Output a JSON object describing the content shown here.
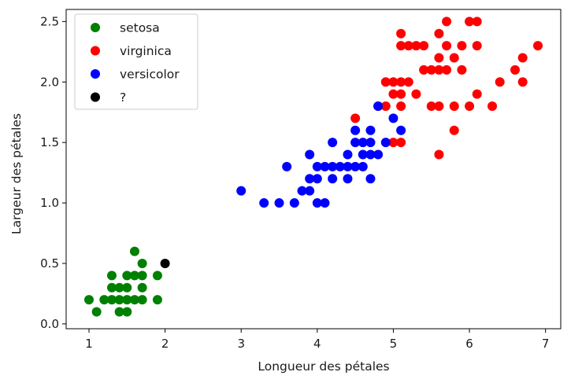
{
  "chart_data": {
    "type": "scatter",
    "title": "",
    "xlabel": "Longueur des pétales",
    "ylabel": "Largeur des pétales",
    "xlim": [
      0.7,
      7.2
    ],
    "ylim": [
      -0.04,
      2.6
    ],
    "xticks": [
      1,
      2,
      3,
      4,
      5,
      6,
      7
    ],
    "yticks": [
      0.0,
      0.5,
      1.0,
      1.5,
      2.0,
      2.5
    ],
    "xtick_labels": [
      "1",
      "2",
      "3",
      "4",
      "5",
      "6",
      "7"
    ],
    "ytick_labels": [
      "0.0",
      "0.5",
      "1.0",
      "1.5",
      "2.0",
      "2.5"
    ],
    "grid": false,
    "legend_position": "top-left",
    "series": [
      {
        "name": "setosa",
        "color": "#008000",
        "points": [
          [
            1.0,
            0.2
          ],
          [
            1.1,
            0.1
          ],
          [
            1.2,
            0.2
          ],
          [
            1.3,
            0.2
          ],
          [
            1.3,
            0.3
          ],
          [
            1.3,
            0.4
          ],
          [
            1.4,
            0.1
          ],
          [
            1.4,
            0.2
          ],
          [
            1.4,
            0.3
          ],
          [
            1.5,
            0.1
          ],
          [
            1.5,
            0.2
          ],
          [
            1.5,
            0.3
          ],
          [
            1.5,
            0.4
          ],
          [
            1.6,
            0.2
          ],
          [
            1.6,
            0.4
          ],
          [
            1.6,
            0.6
          ],
          [
            1.7,
            0.2
          ],
          [
            1.7,
            0.3
          ],
          [
            1.7,
            0.4
          ],
          [
            1.7,
            0.5
          ],
          [
            1.9,
            0.2
          ],
          [
            1.9,
            0.4
          ]
        ]
      },
      {
        "name": "virginica",
        "color": "#ff0000",
        "points": [
          [
            4.5,
            1.7
          ],
          [
            4.8,
            1.8
          ],
          [
            4.9,
            1.8
          ],
          [
            4.9,
            2.0
          ],
          [
            5.0,
            1.5
          ],
          [
            5.0,
            1.9
          ],
          [
            5.0,
            2.0
          ],
          [
            5.1,
            1.5
          ],
          [
            5.1,
            1.8
          ],
          [
            5.1,
            1.9
          ],
          [
            5.1,
            2.0
          ],
          [
            5.1,
            2.3
          ],
          [
            5.1,
            2.4
          ],
          [
            5.2,
            2.0
          ],
          [
            5.2,
            2.3
          ],
          [
            5.3,
            1.9
          ],
          [
            5.3,
            2.3
          ],
          [
            5.4,
            2.1
          ],
          [
            5.4,
            2.3
          ],
          [
            5.5,
            1.8
          ],
          [
            5.5,
            2.1
          ],
          [
            5.6,
            1.4
          ],
          [
            5.6,
            1.8
          ],
          [
            5.6,
            2.1
          ],
          [
            5.6,
            2.2
          ],
          [
            5.6,
            2.4
          ],
          [
            5.7,
            2.1
          ],
          [
            5.7,
            2.3
          ],
          [
            5.7,
            2.5
          ],
          [
            5.8,
            1.6
          ],
          [
            5.8,
            1.8
          ],
          [
            5.8,
            2.2
          ],
          [
            5.9,
            2.1
          ],
          [
            5.9,
            2.3
          ],
          [
            6.0,
            1.8
          ],
          [
            6.0,
            2.5
          ],
          [
            6.1,
            1.9
          ],
          [
            6.1,
            2.3
          ],
          [
            6.1,
            2.5
          ],
          [
            6.3,
            1.8
          ],
          [
            6.4,
            2.0
          ],
          [
            6.6,
            2.1
          ],
          [
            6.7,
            2.0
          ],
          [
            6.7,
            2.2
          ],
          [
            6.9,
            2.3
          ]
        ]
      },
      {
        "name": "versicolor",
        "color": "#0000ff",
        "points": [
          [
            3.0,
            1.1
          ],
          [
            3.3,
            1.0
          ],
          [
            3.5,
            1.0
          ],
          [
            3.6,
            1.3
          ],
          [
            3.7,
            1.0
          ],
          [
            3.8,
            1.1
          ],
          [
            3.9,
            1.1
          ],
          [
            3.9,
            1.2
          ],
          [
            3.9,
            1.4
          ],
          [
            4.0,
            1.0
          ],
          [
            4.0,
            1.2
          ],
          [
            4.0,
            1.3
          ],
          [
            4.1,
            1.0
          ],
          [
            4.1,
            1.3
          ],
          [
            4.2,
            1.2
          ],
          [
            4.2,
            1.3
          ],
          [
            4.2,
            1.5
          ],
          [
            4.3,
            1.3
          ],
          [
            4.4,
            1.2
          ],
          [
            4.4,
            1.3
          ],
          [
            4.4,
            1.4
          ],
          [
            4.5,
            1.3
          ],
          [
            4.5,
            1.5
          ],
          [
            4.5,
            1.6
          ],
          [
            4.6,
            1.3
          ],
          [
            4.6,
            1.4
          ],
          [
            4.6,
            1.5
          ],
          [
            4.7,
            1.2
          ],
          [
            4.7,
            1.4
          ],
          [
            4.7,
            1.5
          ],
          [
            4.7,
            1.6
          ],
          [
            4.8,
            1.4
          ],
          [
            4.8,
            1.8
          ],
          [
            4.9,
            1.5
          ],
          [
            5.0,
            1.7
          ],
          [
            5.1,
            1.6
          ]
        ]
      },
      {
        "name": "?",
        "color": "#000000",
        "points": [
          [
            2.0,
            0.5
          ]
        ]
      }
    ]
  }
}
